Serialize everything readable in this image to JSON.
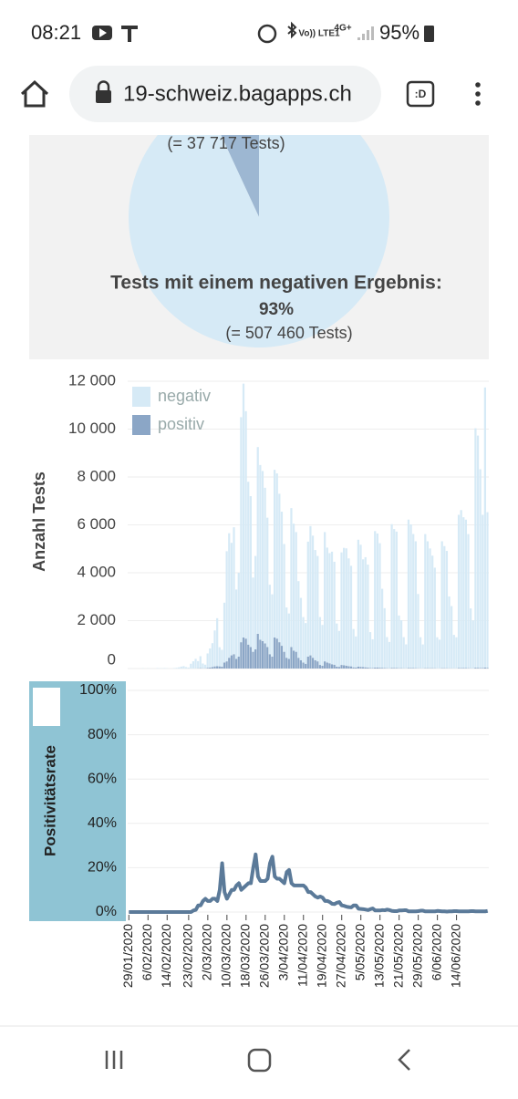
{
  "status_bar": {
    "time": "08:21",
    "signal": "Vo)) LTE1",
    "network": "4G+",
    "battery": "95%"
  },
  "browser": {
    "url": "19-schweiz.bagapps.ch"
  },
  "chart_data": [
    {
      "type": "pie",
      "values": [
        37717,
        507460
      ],
      "value_labels": [
        "(= 37 717 Tests)",
        "(= 507 460 Tests)"
      ],
      "label": "Tests mit einem negativen Ergebnis:",
      "percent_label": "93%",
      "colors": [
        "#9db7d2",
        "#d6eaf6"
      ]
    },
    {
      "type": "bar",
      "stacked": true,
      "y_label": "Anzahl Tests",
      "grid": true,
      "legend": "top-left",
      "ylim": [
        0,
        12000
      ],
      "yticks": [
        0,
        {
          "value": 2000,
          "label": "2 000"
        },
        {
          "value": 4000,
          "label": "4 000"
        },
        {
          "value": 6000,
          "label": "6 000"
        },
        {
          "value": 8000,
          "label": "8 000"
        },
        {
          "value": 10000,
          "label": "10 000"
        },
        {
          "value": 12000,
          "label": "12 000"
        }
      ],
      "series": [
        {
          "name": "negativ",
          "color": "#d6eaf6",
          "values": [
            0,
            5,
            0,
            0,
            0,
            0,
            10,
            0,
            10,
            0,
            0,
            0,
            20,
            10,
            10,
            20,
            10,
            0,
            0,
            20,
            30,
            50,
            80,
            100,
            60,
            40,
            200,
            300,
            400,
            300,
            500,
            200,
            150,
            600,
            800,
            1000,
            1500,
            2000,
            800,
            700,
            2500,
            4600,
            5200,
            4700,
            5300,
            2900,
            3500,
            9400,
            10600,
            9500,
            6800,
            6300,
            3100,
            3900,
            7800,
            7300,
            7100,
            6500,
            5400,
            2900,
            2600,
            7000,
            6900,
            6200,
            5600,
            4500,
            2100,
            1900,
            5800,
            5300,
            5000,
            3200,
            2600,
            1900,
            1700,
            4800,
            5400,
            5100,
            4600,
            4400,
            2000,
            1700,
            5400,
            4800,
            4600,
            4700,
            4300,
            1800,
            1500,
            4700,
            4900,
            4900,
            4500,
            4200,
            1600,
            1300,
            5300,
            5100,
            4500,
            4600,
            4300,
            1500,
            1200,
            5700,
            5600,
            5200,
            3300,
            2500,
            1300,
            1100,
            6000,
            5800,
            5700,
            2200,
            2000,
            1300,
            1000,
            6200,
            6000,
            5600,
            5300,
            3100,
            1300,
            1000,
            5600,
            5300,
            5000,
            4700,
            4200,
            1300,
            1200,
            5300,
            5100,
            4900,
            3000,
            2600,
            1400,
            1300,
            6400,
            6600,
            6300,
            6200,
            5600,
            2500,
            2000,
            10000,
            9700,
            8300,
            6400,
            11700,
            6500
          ]
        },
        {
          "name": "positiv",
          "color": "#8ba6c6",
          "values": [
            0,
            0,
            0,
            0,
            0,
            0,
            0,
            0,
            0,
            0,
            0,
            0,
            0,
            0,
            0,
            0,
            0,
            0,
            0,
            0,
            0,
            0,
            0,
            0,
            0,
            0,
            0,
            2,
            5,
            10,
            15,
            10,
            10,
            30,
            40,
            60,
            90,
            100,
            90,
            80,
            250,
            300,
            450,
            550,
            600,
            400,
            500,
            1100,
            1300,
            1250,
            1000,
            900,
            700,
            800,
            1450,
            1200,
            1150,
            1050,
            900,
            600,
            500,
            1300,
            1250,
            1100,
            950,
            700,
            450,
            400,
            900,
            750,
            700,
            450,
            350,
            250,
            200,
            500,
            550,
            450,
            350,
            300,
            150,
            120,
            300,
            250,
            220,
            180,
            160,
            80,
            70,
            150,
            140,
            120,
            100,
            90,
            50,
            40,
            80,
            70,
            60,
            50,
            40,
            20,
            20,
            40,
            40,
            35,
            30,
            20,
            15,
            10,
            30,
            25,
            20,
            15,
            15,
            10,
            8,
            20,
            20,
            18,
            15,
            12,
            8,
            6,
            15,
            15,
            15,
            14,
            12,
            6,
            5,
            15,
            14,
            12,
            10,
            8,
            5,
            5,
            20,
            18,
            20,
            18,
            15,
            10,
            8,
            35,
            30,
            25,
            20,
            40,
            30
          ]
        }
      ]
    },
    {
      "type": "line",
      "y_label": "Positivitätsrate",
      "color": "#5b7a99",
      "grid": true,
      "ylim": [
        0,
        100
      ],
      "yticks": [
        {
          "value": 0,
          "label": "0%"
        },
        {
          "value": 20,
          "label": "20%"
        },
        {
          "value": 40,
          "label": "40%"
        },
        {
          "value": 60,
          "label": "60%"
        },
        {
          "value": 80,
          "label": "80%"
        },
        {
          "value": 100,
          "label": "100%"
        }
      ],
      "categories": [
        "29/01/2020",
        null,
        null,
        null,
        null,
        null,
        null,
        null,
        "6/02/2020",
        null,
        null,
        null,
        null,
        null,
        null,
        null,
        "14/02/2020",
        null,
        null,
        null,
        null,
        null,
        null,
        null,
        null,
        "23/02/2020",
        null,
        null,
        null,
        null,
        null,
        null,
        null,
        "2/03/2020",
        null,
        null,
        null,
        null,
        null,
        null,
        null,
        "10/03/2020",
        null,
        null,
        null,
        null,
        null,
        null,
        null,
        "18/03/2020",
        null,
        null,
        null,
        null,
        null,
        null,
        null,
        "26/03/2020",
        null,
        null,
        null,
        null,
        null,
        null,
        null,
        "3/04/2020",
        null,
        null,
        null,
        null,
        null,
        null,
        null,
        "11/04/2020",
        null,
        null,
        null,
        null,
        null,
        null,
        null,
        "19/04/2020",
        null,
        null,
        null,
        null,
        null,
        null,
        null,
        "27/04/2020",
        null,
        null,
        null,
        null,
        null,
        null,
        null,
        "5/05/2020",
        null,
        null,
        null,
        null,
        null,
        null,
        null,
        "13/05/2020",
        null,
        null,
        null,
        null,
        null,
        null,
        null,
        "21/05/2020",
        null,
        null,
        null,
        null,
        null,
        null,
        null,
        "29/05/2020",
        null,
        null,
        null,
        null,
        null,
        null,
        null,
        "6/06/2020",
        null,
        null,
        null,
        null,
        null,
        null,
        null,
        "14/06/2020",
        null,
        null,
        null,
        null,
        null,
        null,
        null,
        null,
        null,
        null,
        null,
        null,
        null
      ],
      "values": [
        0,
        0,
        0,
        0,
        0,
        0,
        0,
        0,
        0,
        0,
        0,
        0,
        0,
        0,
        0,
        0,
        0,
        0,
        0,
        0,
        0,
        0,
        0,
        0,
        0,
        0,
        0,
        0.7,
        1,
        3,
        3,
        5,
        6,
        5,
        5,
        6,
        6,
        5,
        10,
        22,
        9,
        6,
        8,
        10,
        10,
        12,
        13,
        10,
        11,
        12,
        13,
        13,
        20,
        26,
        16,
        14,
        14,
        14,
        15,
        22,
        25,
        16,
        15,
        15,
        14,
        13,
        18,
        19,
        13,
        12,
        12,
        12,
        12,
        12,
        11,
        9,
        9,
        8,
        7,
        6.5,
        7,
        6.5,
        5,
        5,
        4.5,
        3.7,
        3.6,
        4.2,
        4.5,
        3,
        2.8,
        2.4,
        2.2,
        2.1,
        3,
        3,
        1.5,
        1.4,
        1.3,
        1.1,
        0.9,
        1.3,
        1.6,
        0.7,
        0.7,
        0.7,
        0.9,
        0.8,
        1.1,
        0.9,
        0.5,
        0.4,
        0.4,
        0.7,
        0.7,
        0.8,
        0.8,
        0.3,
        0.3,
        0.3,
        0.3,
        0.4,
        0.6,
        0.6,
        0.3,
        0.3,
        0.3,
        0.3,
        0.3,
        0.5,
        0.4,
        0.3,
        0.3,
        0.2,
        0.3,
        0.3,
        0.4,
        0.4,
        0.3,
        0.3,
        0.3,
        0.3,
        0.3,
        0.4,
        0.4,
        0.3,
        0.3,
        0.3,
        0.3,
        0.3,
        0.5
      ]
    }
  ]
}
